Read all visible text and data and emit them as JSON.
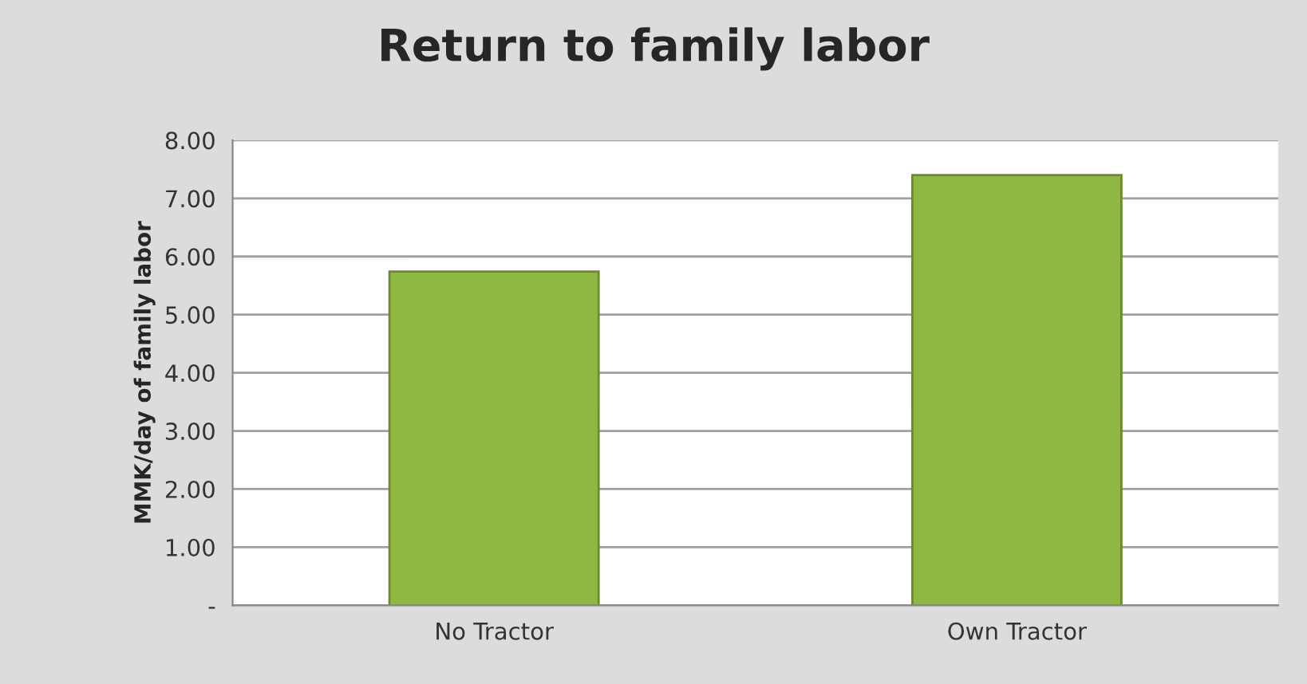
{
  "chart_data": {
    "type": "bar",
    "title": "Return to family labor",
    "ylabel": "MMK/day of family labor",
    "categories": [
      "No Tractor",
      "Own Tractor"
    ],
    "values": [
      5.74,
      7.4
    ],
    "color": "#8fb843",
    "ylim": [
      0,
      8
    ],
    "yticks": [
      {
        "value": 0,
        "label": "-"
      },
      {
        "value": 1,
        "label": "1.00"
      },
      {
        "value": 2,
        "label": "2.00"
      },
      {
        "value": 3,
        "label": "3.00"
      },
      {
        "value": 4,
        "label": "4.00"
      },
      {
        "value": 5,
        "label": "5.00"
      },
      {
        "value": 6,
        "label": "6.00"
      },
      {
        "value": 7,
        "label": "7.00"
      },
      {
        "value": 8,
        "label": "8.00"
      }
    ],
    "grid": "y",
    "legend": false
  }
}
